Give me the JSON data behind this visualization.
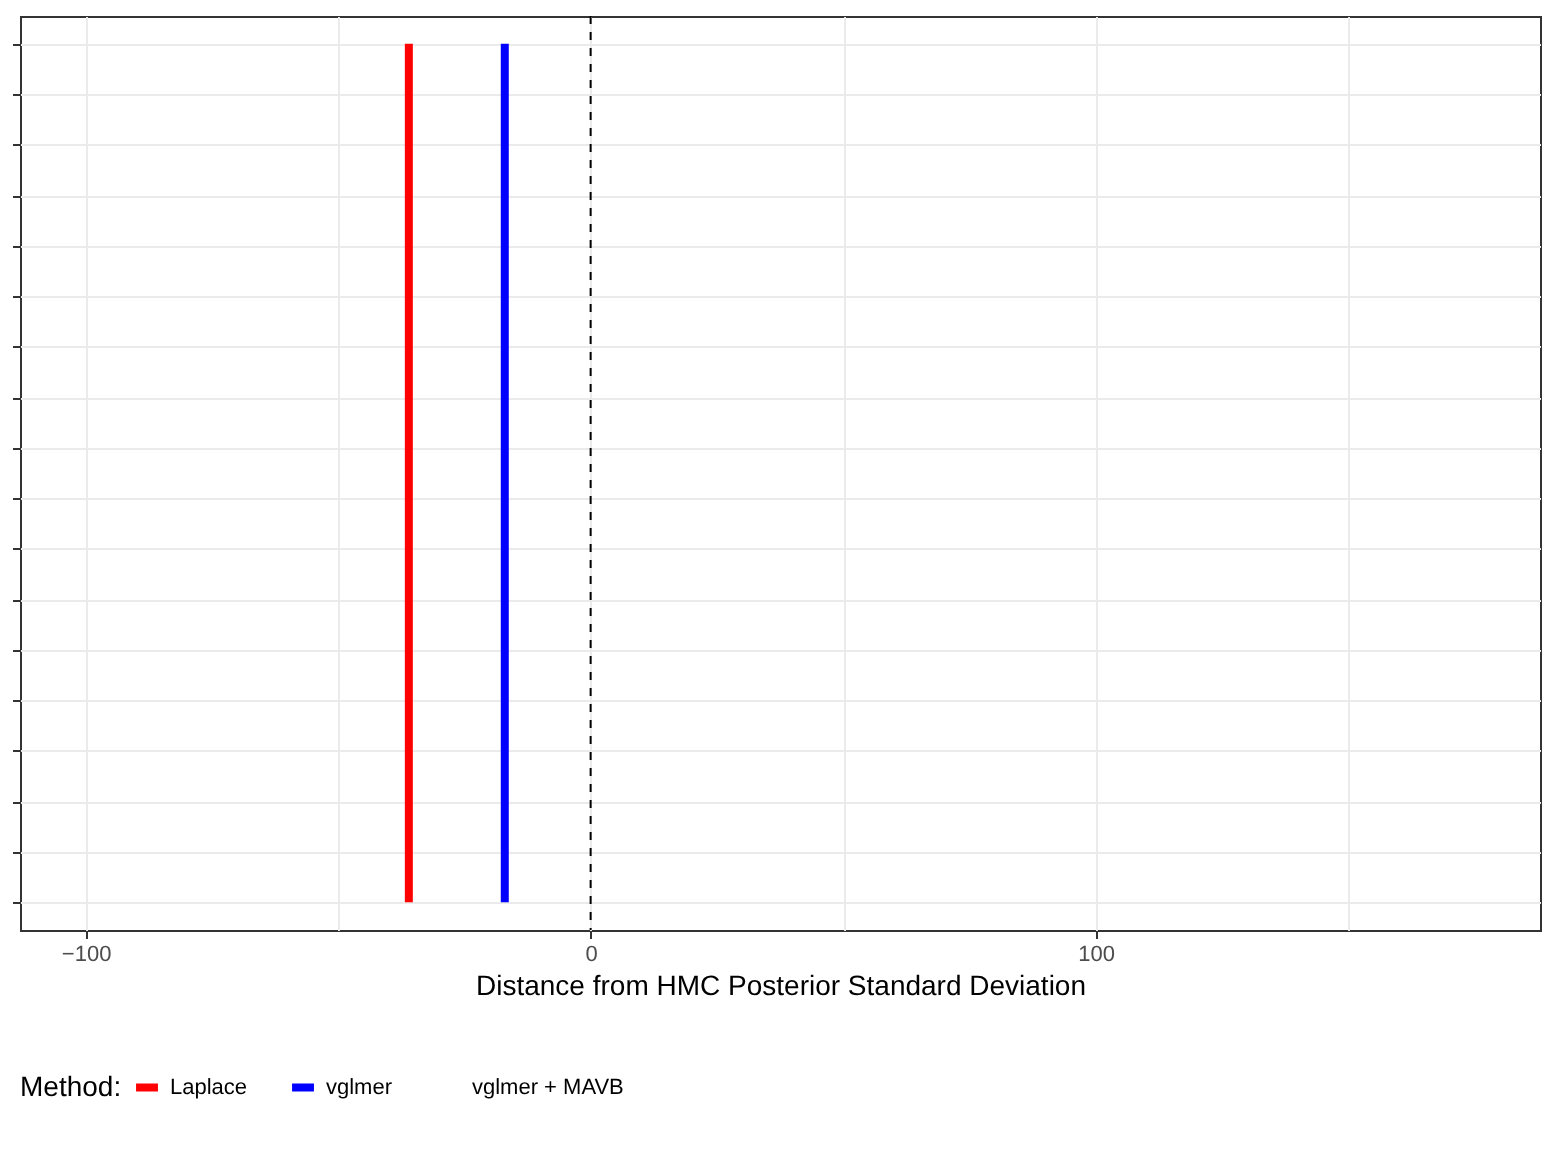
{
  "chart_data": {
    "type": "line",
    "orientation": "horizontal",
    "xlabel": "Distance from HMC Posterior Standard Deviation",
    "legend_title": "Method:",
    "legend": "bottom",
    "grid": true,
    "line_style": "solid",
    "marker": "none",
    "categories": [
      null,
      null,
      null,
      null,
      null,
      null,
      null,
      null,
      null,
      null,
      null,
      null,
      null,
      null,
      null,
      null,
      null,
      null
    ],
    "xlim": [
      -113,
      188
    ],
    "xticks": [
      {
        "value": -100,
        "label": "−100"
      },
      {
        "value": -50,
        "label": null
      },
      0,
      {
        "value": 50,
        "label": null
      },
      100,
      {
        "value": 150,
        "label": null
      }
    ],
    "series": [
      {
        "name": "Laplace",
        "color": "#ff0000",
        "values": [
          -36,
          -36,
          -36,
          -36,
          -36,
          -36,
          -36,
          -36,
          -36,
          -36,
          -36,
          -36,
          -36,
          -36,
          -36,
          -36,
          -36,
          -36
        ]
      },
      {
        "name": "vglmer",
        "color": "#0000ff",
        "values": [
          -17,
          -17,
          -17,
          -17,
          -17,
          -17,
          -17,
          -17,
          -17,
          -17,
          -17,
          -17,
          -17,
          -17,
          -17,
          -17,
          -17,
          -17
        ]
      },
      {
        "name": "vglmer + MAVB",
        "values": [
          null,
          null,
          null,
          null,
          null,
          null,
          null,
          null,
          null,
          null,
          null,
          null,
          null,
          null,
          null,
          null,
          null,
          null
        ]
      }
    ],
    "ref_lines": [
      {
        "axis": "x",
        "value": 0,
        "color": "#000000",
        "line_style": "dashed"
      }
    ]
  }
}
